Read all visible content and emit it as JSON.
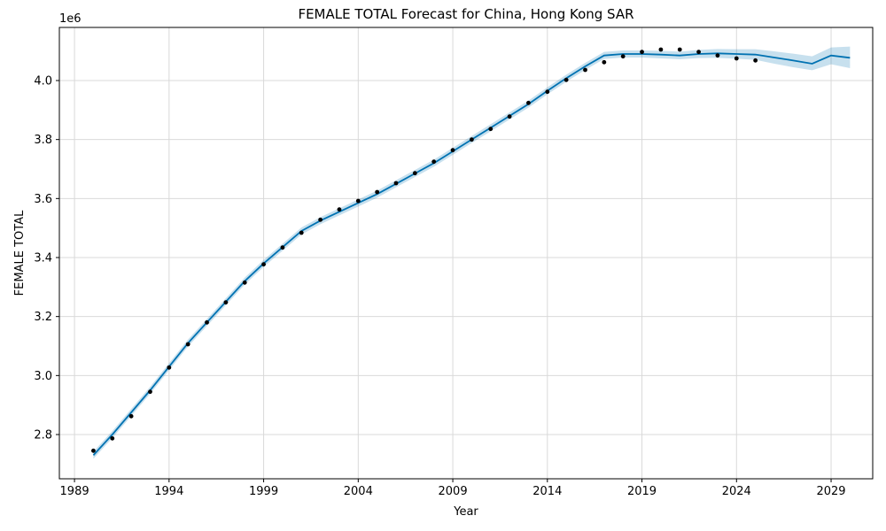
{
  "chart_data": {
    "type": "line",
    "title": "FEMALE TOTAL Forecast for China, Hong Kong SAR",
    "xlabel": "Year",
    "ylabel": "FEMALE TOTAL",
    "y_offset_label": "1e6",
    "xlim": [
      1988.2,
      2031.2
    ],
    "ylim": [
      2650000,
      4180000
    ],
    "x_ticks": [
      1989,
      1994,
      1999,
      2004,
      2009,
      2014,
      2019,
      2024,
      2029
    ],
    "x_tick_labels": [
      "1989",
      "1994",
      "1999",
      "2004",
      "2009",
      "2014",
      "2019",
      "2024",
      "2029"
    ],
    "y_ticks": [
      2800000,
      3000000,
      3200000,
      3400000,
      3600000,
      3800000,
      4000000
    ],
    "y_tick_labels": [
      "2.8",
      "3.0",
      "3.2",
      "3.4",
      "3.6",
      "3.8",
      "4.0"
    ],
    "grid": true,
    "colors": {
      "forecast_line": "#0072B2",
      "uncertainty_band": "#0072B2",
      "actual_points": "#000000",
      "grid": "#d9d9d9"
    },
    "series": [
      {
        "kind": "actual",
        "x": [
          1990,
          1991,
          1992,
          1993,
          1994,
          1995,
          1996,
          1997,
          1998,
          1999,
          2000,
          2001,
          2002,
          2003,
          2004,
          2005,
          2006,
          2007,
          2008,
          2009,
          2010,
          2011,
          2012,
          2013,
          2014,
          2015,
          2016,
          2017,
          2018,
          2019,
          2020,
          2021,
          2022,
          2023,
          2024,
          2025
        ],
        "values": [
          2745000,
          2787000,
          2862000,
          2945000,
          3027000,
          3106000,
          3180000,
          3248000,
          3315000,
          3377000,
          3434000,
          3484000,
          3528000,
          3563000,
          3592000,
          3622000,
          3652000,
          3686000,
          3725000,
          3764000,
          3800000,
          3836000,
          3878000,
          3924000,
          3962000,
          4002000,
          4036000,
          4062000,
          4082000,
          4097000,
          4105000,
          4105000,
          4097000,
          4085000,
          4075000,
          4068000
        ]
      },
      {
        "kind": "forecast",
        "x": [
          1990,
          1991,
          1992,
          1993,
          1994,
          1995,
          1996,
          1997,
          1998,
          1999,
          2000,
          2001,
          2002,
          2003,
          2004,
          2005,
          2006,
          2007,
          2008,
          2009,
          2010,
          2011,
          2012,
          2013,
          2014,
          2015,
          2016,
          2017,
          2018,
          2019,
          2020,
          2021,
          2022,
          2023,
          2024,
          2025,
          2026,
          2027,
          2028,
          2029,
          2030
        ],
        "values": [
          2730000,
          2800000,
          2875000,
          2950000,
          3030000,
          3110000,
          3180000,
          3250000,
          3320000,
          3380000,
          3435000,
          3490000,
          3525000,
          3555000,
          3585000,
          3615000,
          3650000,
          3685000,
          3720000,
          3760000,
          3800000,
          3840000,
          3880000,
          3920000,
          3965000,
          4008000,
          4048000,
          4085000,
          4090000,
          4090000,
          4088000,
          4085000,
          4090000,
          4092000,
          4090000,
          4088000,
          4078000,
          4068000,
          4057000,
          4085000,
          4077000
        ],
        "lower": [
          2718000,
          2788000,
          2863000,
          2938000,
          3018000,
          3098000,
          3168000,
          3238000,
          3308000,
          3368000,
          3423000,
          3478000,
          3513000,
          3543000,
          3573000,
          3603000,
          3638000,
          3673000,
          3708000,
          3748000,
          3788000,
          3828000,
          3868000,
          3908000,
          3953000,
          3996000,
          4036000,
          4073000,
          4078000,
          4078000,
          4075000,
          4072000,
          4076000,
          4077000,
          4074000,
          4070000,
          4057000,
          4045000,
          4035000,
          4055000,
          4042000
        ],
        "upper": [
          2742000,
          2812000,
          2887000,
          2962000,
          3042000,
          3122000,
          3192000,
          3262000,
          3332000,
          3392000,
          3447000,
          3502000,
          3537000,
          3567000,
          3597000,
          3627000,
          3662000,
          3697000,
          3732000,
          3772000,
          3812000,
          3852000,
          3892000,
          3932000,
          3977000,
          4020000,
          4060000,
          4097000,
          4102000,
          4102000,
          4101000,
          4098000,
          4104000,
          4107000,
          4106000,
          4106000,
          4099000,
          4091000,
          4082000,
          4112000,
          4115000
        ]
      }
    ]
  }
}
